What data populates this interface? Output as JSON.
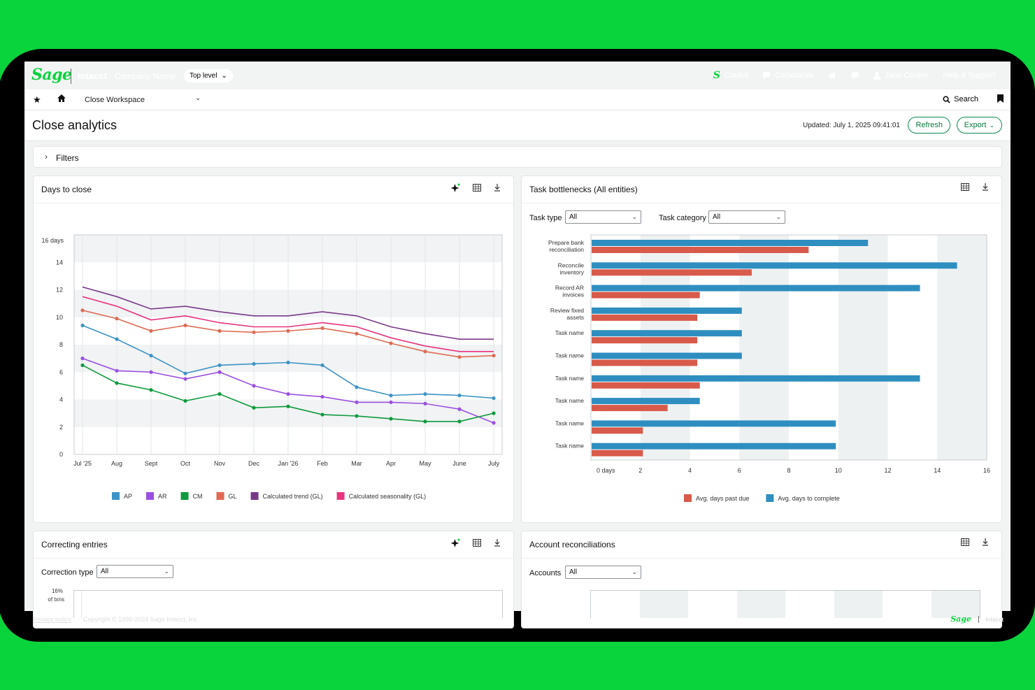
{
  "topbar": {
    "logo": "Sage",
    "product": "Intacct",
    "company": "Company Name",
    "level": "Top level",
    "copilot": "Copilot",
    "collaborate": "Collaborate",
    "user": "Jane Cooper",
    "help": "Help & Support"
  },
  "nav": {
    "workspace": "Close Workspace",
    "search": "Search"
  },
  "page": {
    "title": "Close analytics",
    "updated": "Updated: July 1, 2025  09:41:01",
    "refresh": "Refresh",
    "export": "Export",
    "filters": "Filters"
  },
  "cards": {
    "days_to_close": "Days to close",
    "task_bottlenecks": "Task bottlenecks (All entities)",
    "correcting_entries": "Correcting entries",
    "account_reconciliations": "Account reconciliations"
  },
  "filters": {
    "task_type_label": "Task type",
    "task_type_value": "All",
    "task_category_label": "Task category",
    "task_category_value": "All",
    "correction_type_label": "Correction type",
    "correction_type_value": "All",
    "accounts_label": "Accounts",
    "accounts_value": "All"
  },
  "correcting_axis": {
    "top_tick_1": "16%",
    "top_tick_2": "of txns"
  },
  "footer": {
    "privacy": "Privacy policy",
    "copyright": "Copyright © 1999-2024 Sage Intacct, Inc.",
    "logo": "Sage",
    "product": "Intacct"
  },
  "colors": {
    "brand": "#0ad43c",
    "accent": "#0a8a4c",
    "AP": "#3d93c6",
    "AR": "#9b4fe0",
    "CM": "#0e9a3c",
    "GL": "#de6a52",
    "trend": "#7a3a8a",
    "seasonality": "#e8337f",
    "past_due": "#d85a4a",
    "complete": "#2f8ec0"
  },
  "icons": [
    "sage-logo",
    "copilot-icon",
    "collaborate-icon",
    "megaphone-icon",
    "chat-icon",
    "user-icon",
    "star-icon",
    "home-icon",
    "chevron-down-icon",
    "search-icon",
    "bookmark-icon",
    "chevron-right-icon",
    "sparkle-icon",
    "table-icon",
    "download-icon"
  ],
  "chart_data": [
    {
      "type": "line",
      "x": [
        "Jul '25",
        "Aug",
        "Sept",
        "Oct",
        "Nov",
        "Dec",
        "Jan '26",
        "Feb",
        "Mar",
        "Apr",
        "May",
        "June",
        "July"
      ],
      "yticks": [
        "16 days",
        "14",
        "12",
        "10",
        "8",
        "6",
        "4",
        "2",
        "0"
      ],
      "ylim": [
        0,
        16
      ],
      "grid": "banded",
      "legend": "bottom",
      "series": [
        {
          "name": "AP",
          "values": [
            9.4,
            8.4,
            7.2,
            5.9,
            6.5,
            6.6,
            6.7,
            6.5,
            4.9,
            4.3,
            4.4,
            4.3,
            4.1
          ],
          "markers": true
        },
        {
          "name": "AR",
          "values": [
            7.0,
            6.1,
            6.0,
            5.5,
            6.0,
            5.0,
            4.4,
            4.2,
            3.8,
            3.8,
            3.7,
            3.3,
            2.3
          ],
          "markers": true
        },
        {
          "name": "CM",
          "values": [
            6.5,
            5.2,
            4.7,
            3.9,
            4.4,
            3.4,
            3.5,
            2.9,
            2.8,
            2.6,
            2.4,
            2.4,
            3.0
          ],
          "markers": true
        },
        {
          "name": "GL",
          "values": [
            10.5,
            9.9,
            9.0,
            9.4,
            9.0,
            8.9,
            9.0,
            9.2,
            8.8,
            8.1,
            7.5,
            7.1,
            7.2
          ],
          "markers": true
        },
        {
          "name": "Calculated trend (GL)",
          "values": [
            12.2,
            11.5,
            10.6,
            10.8,
            10.4,
            10.1,
            10.1,
            10.4,
            10.1,
            9.3,
            8.8,
            8.4,
            8.4
          ],
          "markers": false
        },
        {
          "name": "Calculated seasonality (GL)",
          "values": [
            11.5,
            10.8,
            9.8,
            10.1,
            9.6,
            9.3,
            9.3,
            9.6,
            9.3,
            8.5,
            7.9,
            7.5,
            7.5
          ],
          "markers": false
        }
      ]
    },
    {
      "type": "bar",
      "orientation": "horizontal",
      "categories": [
        "Prepare bank reconciliation",
        "Reconcile inventory",
        "Record AR invoices",
        "Review fixed assets",
        "Task name",
        "Task name",
        "Task name",
        "Task name",
        "Task name",
        "Task name"
      ],
      "xticks": [
        "0 days",
        "2",
        "4",
        "6",
        "8",
        "10",
        "12",
        "14",
        "16"
      ],
      "xlim": [
        0,
        16
      ],
      "legend": "bottom",
      "series": [
        {
          "name": "Avg. days to complete",
          "values": [
            11.2,
            14.8,
            13.3,
            6.1,
            6.1,
            6.1,
            13.3,
            4.4,
            9.9,
            9.9
          ]
        },
        {
          "name": "Avg. days past due",
          "values": [
            8.8,
            6.5,
            4.4,
            4.3,
            4.3,
            4.3,
            4.4,
            3.1,
            2.1,
            2.1
          ]
        }
      ]
    }
  ]
}
